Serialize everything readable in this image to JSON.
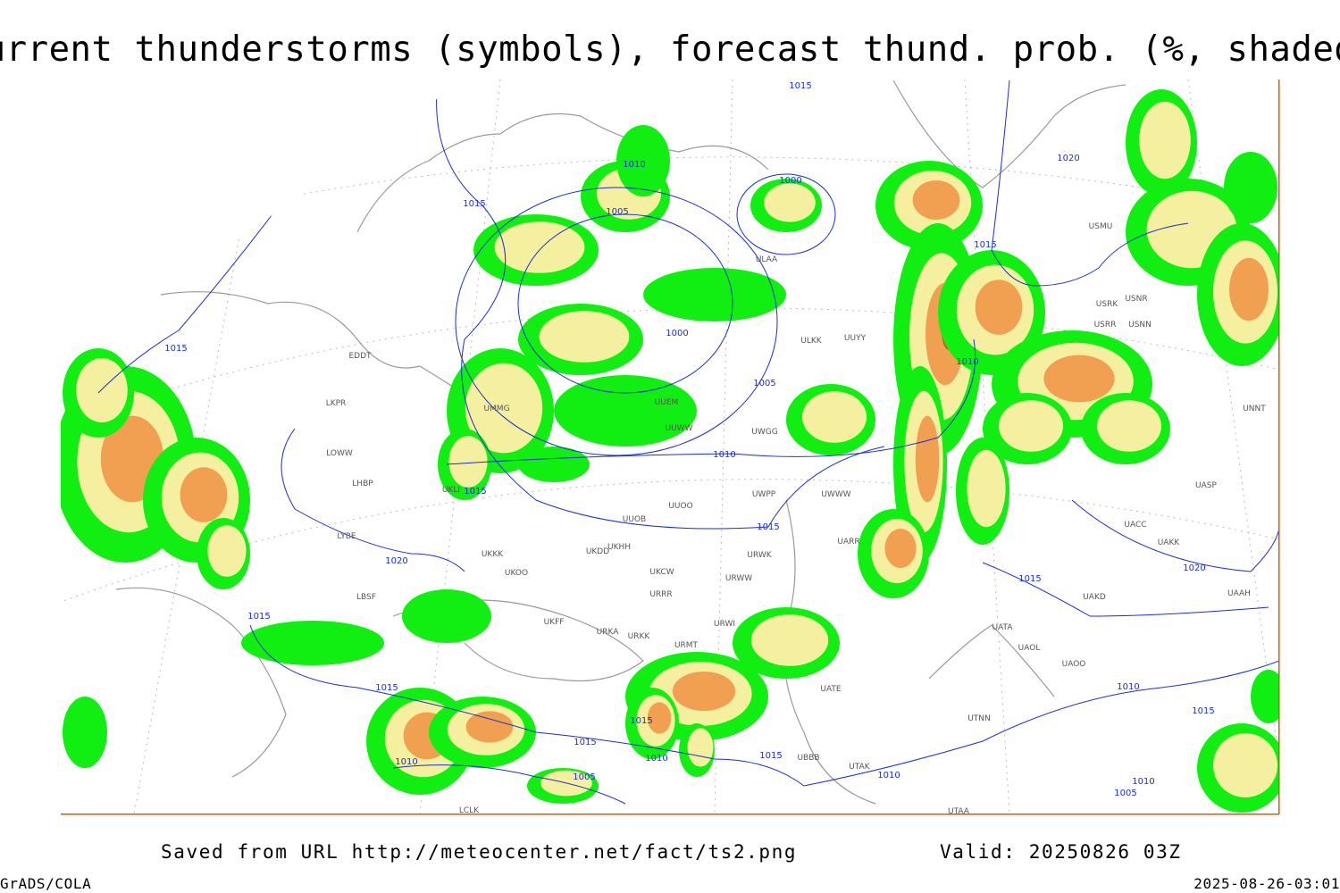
{
  "header": {
    "title": "Current thunderstorms (symbols), forecast thund. prob. (%, shaded)"
  },
  "isobar_labels": [
    "1015",
    "1010",
    "1015",
    "1005",
    "1000",
    "1000",
    "1005",
    "1010",
    "1015",
    "1015",
    "1020",
    "1015",
    "1015",
    "1010",
    "1005",
    "1015",
    "1015",
    "1010",
    "1015",
    "1010",
    "1010",
    "1015",
    "1010",
    "1005",
    "1015",
    "1010",
    "1020",
    "1020",
    "1015",
    "1015"
  ],
  "station_labels": [
    "EDDT",
    "LKPR",
    "LOWW",
    "LHBP",
    "LYBE",
    "LBSF",
    "UMMG",
    "UKLI",
    "UUOO",
    "UWPP",
    "UWWW",
    "UUOB",
    "UKHH",
    "UKDD",
    "UKCW",
    "URWW",
    "URWK",
    "UARR",
    "URRR",
    "URWI",
    "UKFF",
    "URKA",
    "URKK",
    "URMT",
    "UATA",
    "UAOL",
    "UAOO",
    "UATE",
    "UTNN",
    "UBBB",
    "UTAK",
    "UTAA",
    "UAKD",
    "UAKK",
    "UACC",
    "UASP",
    "UAAH",
    "USNN",
    "USRR",
    "USRK",
    "USNR",
    "USMU",
    "UNNT",
    "UUWW",
    "UUEM",
    "UWGG",
    "UKKK",
    "UKOO",
    "LCLK",
    "ULAA",
    "ULKK",
    "UUYY"
  ],
  "footer": {
    "source": "Saved from URL http://meteocenter.net/fact/ts2.png",
    "valid": "Valid: 20250826 03Z",
    "software": "GrADS/COLA",
    "timestamp": "2025-08-26-03:01"
  }
}
